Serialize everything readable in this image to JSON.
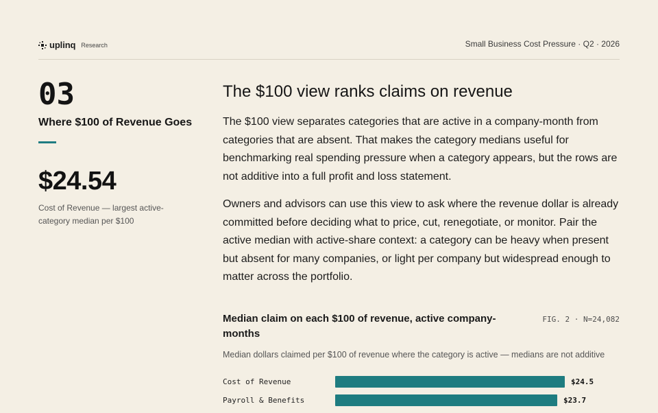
{
  "header": {
    "brand": "uplinq",
    "brand_sub": "Research",
    "report": "Small Business Cost Pressure · Q2 · 2026"
  },
  "left": {
    "section_number": "03",
    "section_title": "Where $100 of Revenue Goes",
    "figure": "$24.54",
    "figure_caption": "Cost of Revenue — largest active-category median per $100",
    "accent_color": "#1f7c82"
  },
  "article": {
    "heading": "The $100 view ranks claims on revenue",
    "paragraphs": [
      "The $100 view separates categories that are active in a company-month from categories that are absent. That makes the category medians useful for benchmarking real spending pressure when a category appears, but the rows are not additive into a full profit and loss statement.",
      "Owners and advisors can use this view to ask where the revenue dollar is already committed before deciding what to price, cut, renegotiate, or monitor. Pair the active median with active-share context: a category can be heavy when present but absent for many companies, or light per company but widespread enough to matter across the portfolio."
    ]
  },
  "chart_data": {
    "type": "bar",
    "orientation": "horizontal",
    "title": "Median claim on each $100 of revenue, active company-months",
    "figure_tag": "FIG. 2 · N=24,082",
    "subtitle": "Median dollars claimed per $100 of revenue where the category is active — medians are not additive",
    "categories": [
      "Cost of Revenue",
      "Payroll & Benefits"
    ],
    "values": [
      24.5,
      23.7
    ],
    "value_labels": [
      "$24.5",
      "$23.7"
    ],
    "xlim": [
      0,
      25.6
    ],
    "bar_color": "#1e7c80"
  }
}
